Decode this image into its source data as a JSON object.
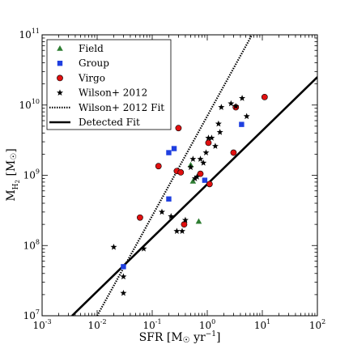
{
  "chart_data": {
    "type": "scatter",
    "xscale": "log",
    "yscale": "log",
    "xlim": [
      0.001,
      100
    ],
    "ylim": [
      10000000,
      100000000000
    ],
    "xticks": [
      {
        "value": 0.001,
        "base": "10",
        "exp": "-3"
      },
      {
        "value": 0.01,
        "base": "10",
        "exp": "-2"
      },
      {
        "value": 0.1,
        "base": "10",
        "exp": "-1"
      },
      {
        "value": 1,
        "base": "10",
        "exp": "0"
      },
      {
        "value": 10,
        "base": "10",
        "exp": "1"
      },
      {
        "value": 100,
        "base": "10",
        "exp": "2"
      }
    ],
    "yticks": [
      {
        "value": 10000000,
        "base": "10",
        "exp": "7"
      },
      {
        "value": 100000000,
        "base": "10",
        "exp": "8"
      },
      {
        "value": 1000000000,
        "base": "10",
        "exp": "9"
      },
      {
        "value": 10000000000,
        "base": "10",
        "exp": "10"
      },
      {
        "value": 100000000000,
        "base": "10",
        "exp": "11"
      }
    ],
    "xlabel": {
      "main": "SFR [M",
      "sun": "☉",
      "unit": " yr",
      "sup": "−1",
      "close": "]"
    },
    "ylabel": {
      "main": "M",
      "sub": "H",
      "subsub": "2",
      "unit": " [M",
      "sun": "☉",
      "close": "]"
    },
    "legend_position": "top-left",
    "series": [
      {
        "name": "Field",
        "marker": "triangle",
        "color": "#2e7d32",
        "points": [
          [
            0.5,
            1400000000
          ],
          [
            0.55,
            820000000
          ],
          [
            0.7,
            220000000
          ]
        ]
      },
      {
        "name": "Group",
        "marker": "square",
        "color": "#1f3fe0",
        "points": [
          [
            0.2,
            2100000000
          ],
          [
            0.25,
            2400000000
          ],
          [
            0.2,
            460000000
          ],
          [
            0.9,
            850000000
          ],
          [
            4.2,
            5300000000
          ],
          [
            0.03,
            50000000
          ]
        ]
      },
      {
        "name": "Virgo",
        "marker": "circle",
        "color": "#e01010",
        "points": [
          [
            0.3,
            4700000000
          ],
          [
            0.13,
            1350000000
          ],
          [
            0.28,
            1150000000
          ],
          [
            0.33,
            1100000000
          ],
          [
            0.75,
            1050000000
          ],
          [
            1.1,
            750000000
          ],
          [
            1.05,
            2900000000
          ],
          [
            3.0,
            2100000000
          ],
          [
            3.3,
            9300000000
          ],
          [
            11.0,
            13000000000
          ],
          [
            0.06,
            250000000
          ],
          [
            0.38,
            200000000
          ]
        ]
      },
      {
        "name": "Wilson+ 2012",
        "marker": "star",
        "color": "#000000",
        "points": [
          [
            0.02,
            95000000
          ],
          [
            0.03,
            21000000
          ],
          [
            0.03,
            36000000
          ],
          [
            0.07,
            90000000
          ],
          [
            0.15,
            300000000
          ],
          [
            0.22,
            260000000
          ],
          [
            0.28,
            160000000
          ],
          [
            0.35,
            160000000
          ],
          [
            0.4,
            230000000
          ],
          [
            0.55,
            1700000000
          ],
          [
            0.6,
            900000000
          ],
          [
            0.5,
            1300000000
          ],
          [
            0.65,
            950000000
          ],
          [
            0.75,
            1700000000
          ],
          [
            0.85,
            1500000000
          ],
          [
            0.95,
            2100000000
          ],
          [
            1.05,
            3400000000
          ],
          [
            1.2,
            3400000000
          ],
          [
            1.4,
            2600000000
          ],
          [
            1.6,
            5400000000
          ],
          [
            1.7,
            4100000000
          ],
          [
            1.8,
            9300000000
          ],
          [
            2.7,
            10500000000
          ],
          [
            3.3,
            9600000000
          ],
          [
            4.3,
            12500000000
          ],
          [
            5.2,
            6900000000
          ]
        ]
      },
      {
        "name": "Wilson+ 2012 Fit",
        "marker": "line-dotted",
        "color": "#000000",
        "line": [
          [
            0.01,
            10000000
          ],
          [
            6.5,
            100000000000
          ]
        ]
      },
      {
        "name": "Detected Fit",
        "marker": "line-solid",
        "color": "#000000",
        "line": [
          [
            0.0035,
            10000000
          ],
          [
            100,
            25000000000
          ]
        ]
      }
    ]
  }
}
